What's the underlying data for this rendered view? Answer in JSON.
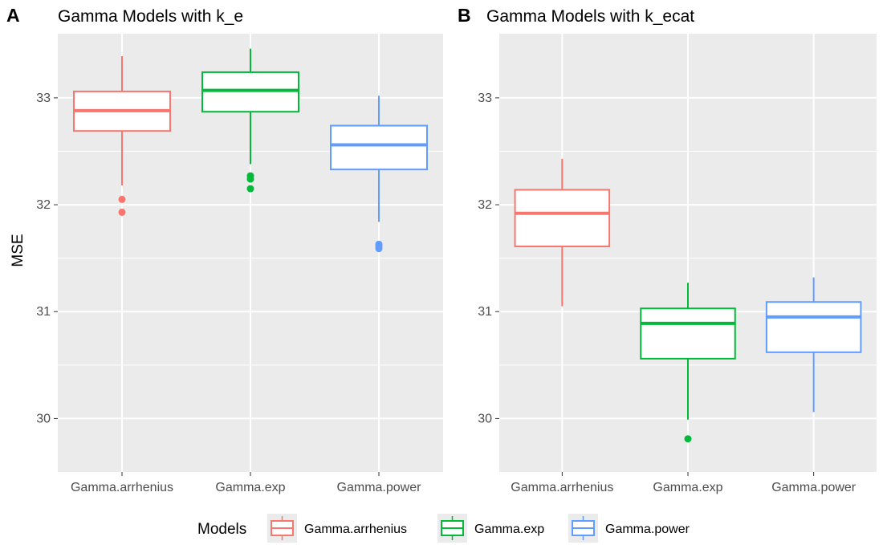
{
  "legend": {
    "title": "Models",
    "entries": [
      {
        "label": "Gamma.arrhenius",
        "color": "#F8766D"
      },
      {
        "label": "Gamma.exp",
        "color": "#00BA38"
      },
      {
        "label": "Gamma.power",
        "color": "#619CFF"
      }
    ]
  },
  "ylabel": "MSE",
  "chart_data": [
    {
      "type": "box",
      "panel_tag": "A",
      "title": "Gamma Models with k_e",
      "categories": [
        "Gamma.arrhenius",
        "Gamma.exp",
        "Gamma.power"
      ],
      "ylim": [
        29.5,
        33.6
      ],
      "yticks": [
        30,
        31,
        32,
        33
      ],
      "grid": true,
      "series": [
        {
          "name": "Gamma.arrhenius",
          "color": "#F8766D",
          "min": 32.18,
          "q1": 32.69,
          "median": 32.88,
          "q3": 33.06,
          "max": 33.39,
          "outliers": [
            32.05,
            31.93
          ]
        },
        {
          "name": "Gamma.exp",
          "color": "#00BA38",
          "min": 32.38,
          "q1": 32.87,
          "median": 33.07,
          "q3": 33.24,
          "max": 33.46,
          "outliers": [
            32.27,
            32.24,
            32.15
          ]
        },
        {
          "name": "Gamma.power",
          "color": "#619CFF",
          "min": 31.84,
          "q1": 32.33,
          "median": 32.56,
          "q3": 32.74,
          "max": 33.02,
          "outliers": [
            31.63,
            31.61,
            31.59
          ]
        }
      ]
    },
    {
      "type": "box",
      "panel_tag": "B",
      "title": "Gamma Models with k_ecat",
      "categories": [
        "Gamma.arrhenius",
        "Gamma.exp",
        "Gamma.power"
      ],
      "ylim": [
        29.5,
        33.6
      ],
      "yticks": [
        30,
        31,
        32,
        33
      ],
      "grid": true,
      "series": [
        {
          "name": "Gamma.arrhenius",
          "color": "#F8766D",
          "min": 31.05,
          "q1": 31.61,
          "median": 31.92,
          "q3": 32.14,
          "max": 32.43,
          "outliers": []
        },
        {
          "name": "Gamma.exp",
          "color": "#00BA38",
          "min": 29.99,
          "q1": 30.56,
          "median": 30.89,
          "q3": 31.03,
          "max": 31.27,
          "outliers": [
            29.81
          ]
        },
        {
          "name": "Gamma.power",
          "color": "#619CFF",
          "min": 30.06,
          "q1": 30.62,
          "median": 30.95,
          "q3": 31.09,
          "max": 31.32,
          "outliers": []
        }
      ]
    }
  ]
}
